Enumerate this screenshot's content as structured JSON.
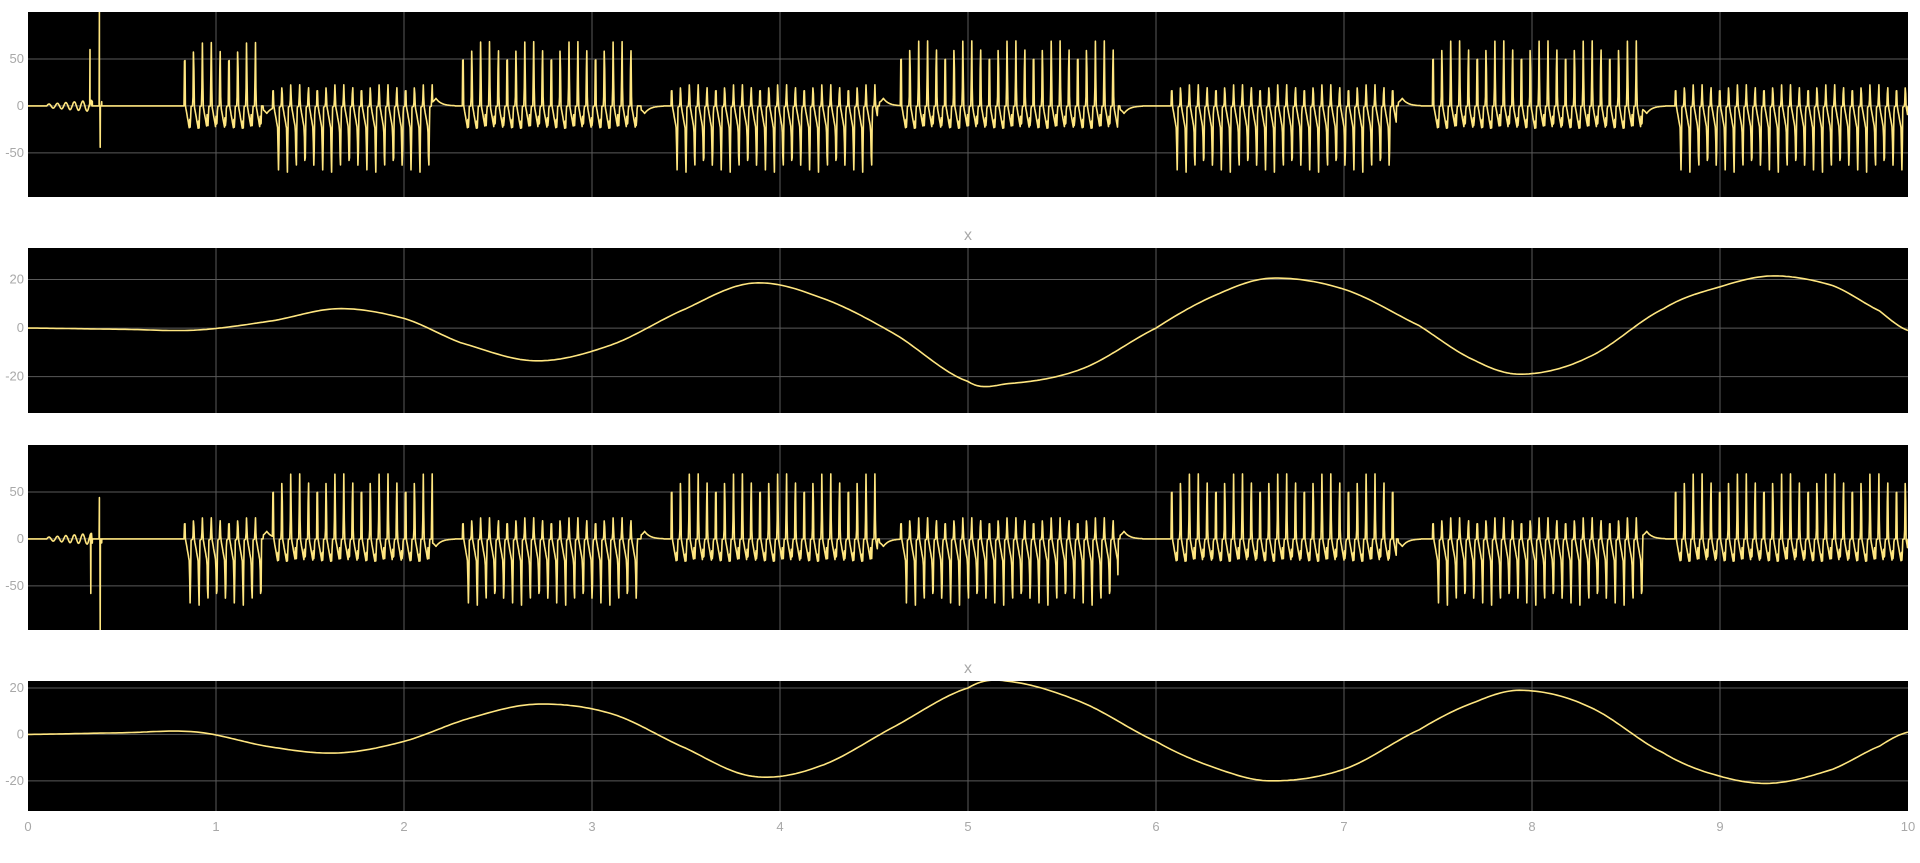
{
  "colors": {
    "axes_bg": "#000000",
    "figure_bg": "#ffffff",
    "grid": "#5a5a5a",
    "line": "#ffe680",
    "text": "#a8a8a8"
  },
  "chart_data": [
    {
      "type": "line",
      "title": "",
      "xlim": [
        0,
        10
      ],
      "ylim": [
        -97,
        100
      ],
      "xticks": [
        0,
        1,
        2,
        3,
        4,
        5,
        6,
        7,
        8,
        9,
        10
      ],
      "yticks": [
        50,
        0,
        -50
      ],
      "ytick_labels": [
        "50",
        "0",
        "-50"
      ],
      "grid": true,
      "series": [
        {
          "kind": "pwm",
          "fast_on": 0.058,
          "fast_off": 0.031,
          "fast_amp": 24,
          "lift": 0.45,
          "bursts": [
            {
              "t0": 0.83,
              "t1": 1.24,
              "period": 0.047,
              "hi": 72,
              "lo": -24
            },
            {
              "t0": 1.3,
              "t1": 2.15,
              "period": 0.047,
              "hi": 24,
              "lo": -72
            },
            {
              "t0": 2.31,
              "t1": 3.24,
              "period": 0.047,
              "hi": 73,
              "lo": -24
            },
            {
              "t0": 3.42,
              "t1": 4.52,
              "period": 0.047,
              "hi": 24,
              "lo": -72
            },
            {
              "t0": 4.64,
              "t1": 5.8,
              "period": 0.047,
              "hi": 74,
              "lo": -24
            },
            {
              "t0": 6.08,
              "t1": 7.28,
              "period": 0.047,
              "hi": 24,
              "lo": -72
            },
            {
              "t0": 7.47,
              "t1": 8.59,
              "period": 0.047,
              "hi": 74,
              "lo": -24
            },
            {
              "t0": 8.76,
              "t1": 10.0,
              "period": 0.047,
              "hi": 24,
              "lo": -72
            }
          ],
          "tails": [
            {
              "t": 1.27,
              "dir": -1
            },
            {
              "t": 2.17,
              "dir": 1
            },
            {
              "t": 3.28,
              "dir": -1
            },
            {
              "t": 4.55,
              "dir": 1
            },
            {
              "t": 5.83,
              "dir": -1
            },
            {
              "t": 7.31,
              "dir": 1
            },
            {
              "t": 8.61,
              "dir": -1
            }
          ],
          "spikes": [
            {
              "t": 0.33,
              "hi": 60,
              "lo": 2
            },
            {
              "t": 0.38,
              "hi": 100,
              "lo": -44
            }
          ],
          "wiggles": [
            {
              "t0": 0.1,
              "t1": 0.34,
              "amp": 6,
              "period": 0.045
            }
          ]
        }
      ]
    },
    {
      "type": "line",
      "title": "x",
      "xlim": [
        0,
        10
      ],
      "ylim": [
        -35,
        33
      ],
      "xticks": [
        0,
        1,
        2,
        3,
        4,
        5,
        6,
        7,
        8,
        9,
        10
      ],
      "yticks": [
        20,
        0,
        -20
      ],
      "ytick_labels": [
        "20",
        "0",
        "-20"
      ],
      "grid": true,
      "series": [
        {
          "kind": "curve",
          "x": [
            0,
            0.5,
            0.9,
            1.3,
            1.65,
            2.0,
            2.3,
            2.7,
            3.1,
            3.5,
            3.85,
            4.2,
            4.6,
            5.0,
            5.2,
            5.6,
            6.0,
            6.3,
            6.6,
            7.0,
            7.4,
            7.7,
            7.95,
            8.3,
            8.7,
            9.0,
            9.28,
            9.6,
            9.85,
            10.0
          ],
          "y": [
            0,
            -0.5,
            -0.8,
            3,
            8,
            4,
            -6,
            -13.5,
            -7,
            8,
            18.5,
            13,
            -2,
            -22,
            -23,
            -17,
            0,
            13,
            20.5,
            16,
            1,
            -13.5,
            -19,
            -12,
            8,
            17,
            21.5,
            17.5,
            7,
            -1
          ]
        }
      ]
    },
    {
      "type": "line",
      "title": "",
      "xlim": [
        0,
        10
      ],
      "ylim": [
        -97,
        100
      ],
      "xticks": [
        0,
        1,
        2,
        3,
        4,
        5,
        6,
        7,
        8,
        9,
        10
      ],
      "yticks": [
        50,
        0,
        -50
      ],
      "ytick_labels": [
        "50",
        "0",
        "-50"
      ],
      "grid": true,
      "series": [
        {
          "kind": "pwm",
          "fast_on": 0.058,
          "fast_off": 0.031,
          "fast_amp": 24,
          "lift": 0.45,
          "bursts": [
            {
              "t0": 0.83,
              "t1": 1.24,
              "period": 0.047,
              "hi": 24,
              "lo": -72
            },
            {
              "t0": 1.3,
              "t1": 2.15,
              "period": 0.047,
              "hi": 74,
              "lo": -24
            },
            {
              "t0": 2.31,
              "t1": 3.24,
              "period": 0.047,
              "hi": 24,
              "lo": -72
            },
            {
              "t0": 3.42,
              "t1": 4.52,
              "period": 0.047,
              "hi": 74,
              "lo": -24
            },
            {
              "t0": 4.64,
              "t1": 5.8,
              "period": 0.047,
              "hi": 24,
              "lo": -72
            },
            {
              "t0": 6.08,
              "t1": 7.28,
              "period": 0.047,
              "hi": 74,
              "lo": -24
            },
            {
              "t0": 7.47,
              "t1": 8.59,
              "period": 0.047,
              "hi": 24,
              "lo": -72
            },
            {
              "t0": 8.76,
              "t1": 10.0,
              "period": 0.047,
              "hi": 74,
              "lo": -24
            }
          ],
          "tails": [
            {
              "t": 1.27,
              "dir": 1
            },
            {
              "t": 2.17,
              "dir": -1
            },
            {
              "t": 3.28,
              "dir": 1
            },
            {
              "t": 4.55,
              "dir": -1
            },
            {
              "t": 5.83,
              "dir": 1
            },
            {
              "t": 7.31,
              "dir": -1
            },
            {
              "t": 8.61,
              "dir": 1
            }
          ],
          "spikes": [
            {
              "t": 0.33,
              "hi": 2,
              "lo": -58
            },
            {
              "t": 0.38,
              "hi": 44,
              "lo": -97
            }
          ],
          "wiggles": [
            {
              "t0": 0.1,
              "t1": 0.34,
              "amp": 6,
              "period": 0.045
            }
          ]
        }
      ]
    },
    {
      "type": "line",
      "title": "x",
      "xlim": [
        0,
        10
      ],
      "ylim": [
        -33,
        23
      ],
      "xticks": [
        0,
        1,
        2,
        3,
        4,
        5,
        6,
        7,
        8,
        9,
        10
      ],
      "xtick_labels": [
        "0",
        "1",
        "2",
        "3",
        "4",
        "5",
        "6",
        "7",
        "8",
        "9",
        "10"
      ],
      "yticks": [
        20,
        0,
        -20
      ],
      "ytick_labels": [
        "20",
        "0",
        "-20"
      ],
      "grid": true,
      "series": [
        {
          "kind": "curve",
          "x": [
            0,
            0.5,
            0.9,
            1.3,
            1.65,
            2.0,
            2.35,
            2.7,
            3.1,
            3.5,
            3.85,
            4.2,
            4.6,
            5.0,
            5.2,
            5.6,
            6.0,
            6.3,
            6.6,
            7.0,
            7.4,
            7.7,
            7.95,
            8.3,
            8.7,
            9.0,
            9.28,
            9.6,
            9.85,
            10.0
          ],
          "y": [
            0,
            0.7,
            1,
            -5.5,
            -8,
            -3,
            7,
            13,
            9,
            -6,
            -18,
            -14,
            3,
            20,
            23,
            14,
            -3,
            -14,
            -20,
            -15,
            2,
            14,
            19,
            12,
            -8,
            -18,
            -21,
            -15,
            -5,
            1
          ]
        }
      ]
    }
  ]
}
